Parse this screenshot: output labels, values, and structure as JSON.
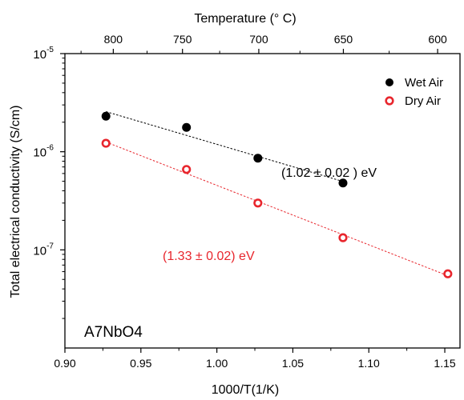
{
  "chart_data": {
    "type": "scatter",
    "title": "",
    "xlabel": "1000/T(1/K)",
    "ylabel": "Total electrical conductivity (S/cm)",
    "top_axis_label": "Temperature (° C)",
    "xlim": [
      0.9,
      1.16
    ],
    "ylim": [
      1e-08,
      1e-05
    ],
    "yscale": "log",
    "x_ticks": [
      "0.90",
      "0.95",
      "1.00",
      "1.05",
      "1.10",
      "1.15"
    ],
    "y_ticks": [
      {
        "base": "10",
        "exp": "-5"
      },
      {
        "base": "10",
        "exp": "-6"
      },
      {
        "base": "10",
        "exp": "-7"
      }
    ],
    "top_ticks": [
      "800",
      "750",
      "700",
      "650",
      "600"
    ],
    "grid": false,
    "legend_position": "top-right",
    "sample_label": "A7NbO4",
    "series": [
      {
        "name": "Wet Air",
        "color": "#000000",
        "marker": "filled-circle",
        "x": [
          0.927,
          0.98,
          1.027,
          1.083
        ],
        "y": [
          2.3e-06,
          1.77e-06,
          8.6e-07,
          4.8e-07
        ],
        "annotation": "(1.02 ± 0.02 ) eV"
      },
      {
        "name": "Dry Air",
        "color": "#e8262d",
        "marker": "open-circle",
        "x": [
          0.927,
          0.98,
          1.027,
          1.083,
          1.152
        ],
        "y": [
          1.22e-06,
          6.6e-07,
          3e-07,
          1.33e-07,
          5.7e-08
        ],
        "annotation": "(1.33 ± 0.02) eV"
      }
    ]
  }
}
